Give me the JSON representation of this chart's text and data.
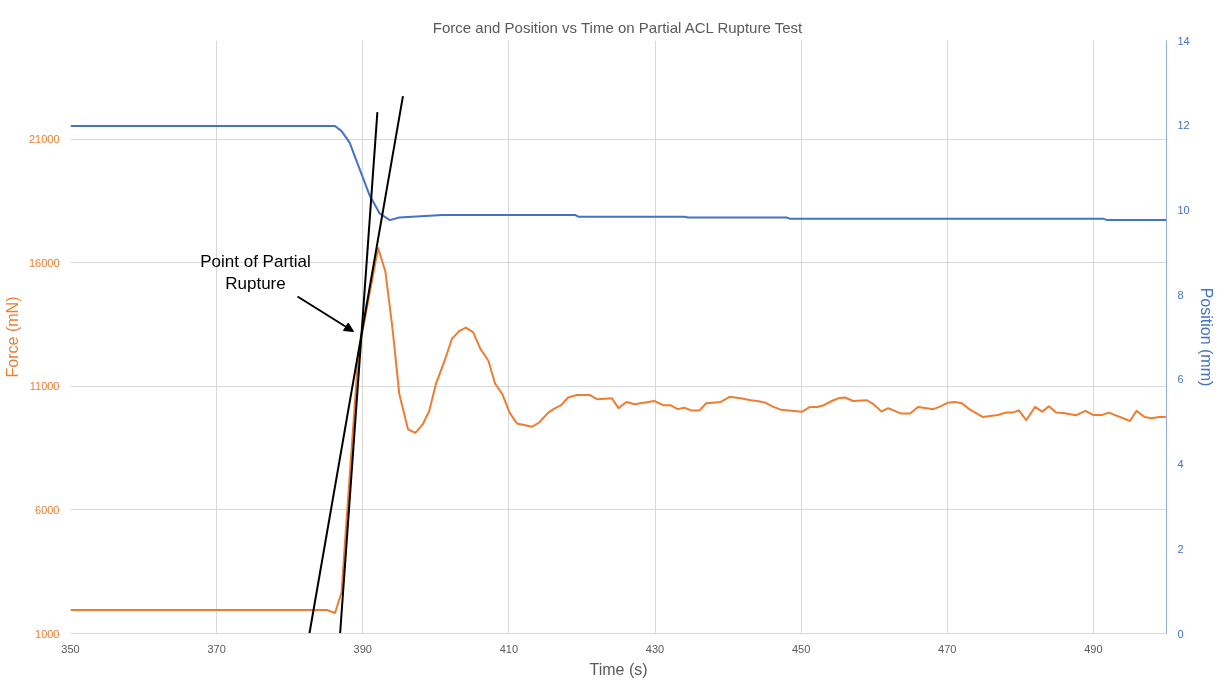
{
  "chart_data": {
    "type": "line",
    "title": "Force and Position vs Time on Partial ACL Rupture Test",
    "xlabel": "Time (s)",
    "ylabel": "Force (mN)",
    "y2label": "Position (mm)",
    "xlim": [
      350,
      500
    ],
    "xticks": [
      350,
      370,
      390,
      410,
      430,
      450,
      470,
      490
    ],
    "ylim": [
      1000,
      25000
    ],
    "yticks": [
      1000,
      6000,
      11000,
      16000,
      21000
    ],
    "y2lim": [
      0,
      14
    ],
    "y2ticks": [
      0,
      2,
      4,
      6,
      8,
      10,
      12,
      14
    ],
    "grid": true,
    "annotations": [
      "Point of Partial\nRupture"
    ],
    "series": [
      {
        "color": "#ed7d31",
        "x": [
          350,
          385.1,
          386.2,
          387.1,
          387.6,
          389.4,
          390.5,
          392.1,
          393.1,
          394.1,
          395.0,
          396.2,
          397.2,
          398.2,
          399.1,
          400.0,
          401.2,
          402.2,
          403.2,
          404.1,
          405.1,
          406.1,
          407.2,
          408.1,
          409.1,
          410.1,
          411.1,
          413.2,
          414.1,
          415.4,
          416.1,
          417.2,
          418.1,
          419.3,
          421.1,
          422.1,
          424.1,
          425.0,
          426.1,
          427.2,
          429.9,
          431.1,
          432.1,
          433.1,
          434.0,
          434.9,
          436.1,
          437.0,
          439.0,
          440.2,
          441.7,
          443.1,
          444.0,
          445.1,
          446.1,
          447.2,
          450.1,
          451.2,
          452.2,
          453.1,
          454.2,
          455.1,
          456.0,
          457.1,
          459.0,
          459.9,
          461.0,
          461.9,
          463.7,
          464.9,
          466.0,
          468.1,
          469.0,
          470.1,
          471.0,
          472.0,
          473.0,
          474.9,
          476.9,
          478.0,
          478.9,
          479.8,
          480.8,
          482.0,
          483.0,
          483.9,
          484.9,
          485.9,
          487.6,
          488.9,
          490.0,
          491.1,
          492.1,
          493.9,
          495.0,
          495.9,
          497.0,
          497.9,
          499.0,
          499.9
        ],
        "values": [
          1950,
          1950,
          1830,
          2670,
          4840,
          12320,
          14080,
          16600,
          15640,
          13270,
          10690,
          9260,
          9120,
          9460,
          10010,
          11090,
          12040,
          12930,
          13240,
          13380,
          13200,
          12520,
          12040,
          11120,
          10690,
          9940,
          9500,
          9370,
          9530,
          9940,
          10080,
          10250,
          10550,
          10650,
          10650,
          10480,
          10520,
          10120,
          10370,
          10280,
          10410,
          10240,
          10240,
          10080,
          10140,
          10030,
          10030,
          10320,
          10370,
          10580,
          10520,
          10440,
          10410,
          10340,
          10180,
          10060,
          9970,
          10170,
          10170,
          10240,
          10410,
          10520,
          10550,
          10410,
          10440,
          10280,
          9980,
          10120,
          9900,
          9900,
          10170,
          10080,
          10180,
          10340,
          10370,
          10320,
          10080,
          9760,
          9840,
          9940,
          9940,
          10030,
          9630,
          10170,
          9980,
          10200,
          9940,
          9920,
          9830,
          10010,
          9840,
          9840,
          9940,
          9730,
          9600,
          10010,
          9760,
          9710,
          9760,
          9760
        ]
      },
      {
        "color": "#4472c4",
        "axis": "y2",
        "x": [
          350,
          386.2,
          387.1,
          388.2,
          389.6,
          390.9,
          392.3,
          393.7,
          395.0,
          400.9,
          419.1,
          419.5,
          434.0,
          434.5,
          448.0,
          448.5,
          491.4,
          491.9,
          500
        ],
        "values": [
          11.98,
          11.98,
          11.86,
          11.59,
          10.95,
          10.36,
          9.92,
          9.76,
          9.82,
          9.88,
          9.88,
          9.84,
          9.84,
          9.82,
          9.82,
          9.79,
          9.79,
          9.76,
          9.76
        ]
      },
      {
        "color": "#000000",
        "x": [
          382.7,
          395.5
        ],
        "values": [
          1000,
          22750
        ]
      },
      {
        "color": "#000000",
        "x": [
          386.9,
          392.0
        ],
        "values": [
          1000,
          22100
        ]
      }
    ]
  }
}
